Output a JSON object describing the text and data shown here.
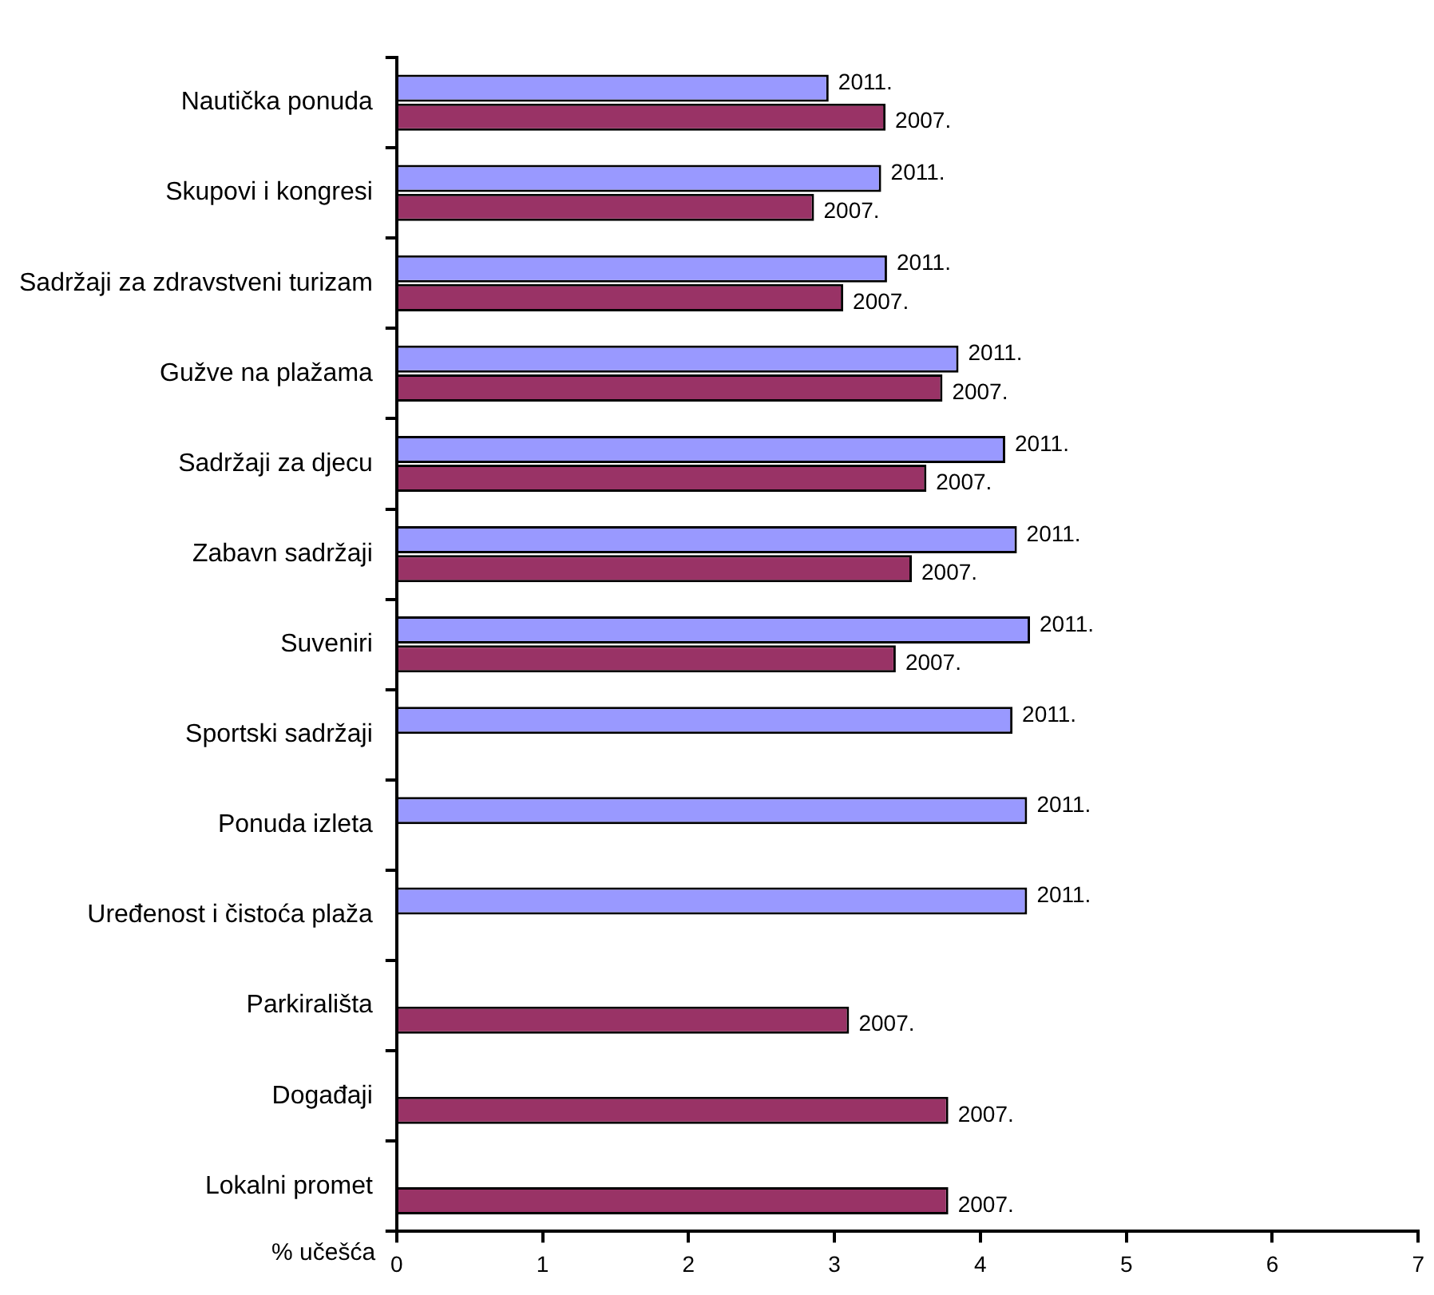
{
  "chart_data": {
    "type": "bar",
    "orientation": "horizontal",
    "xlabel": "% učešća",
    "categories": [
      "Nautička ponuda",
      "Skupovi i kongresi",
      "Sadržaji za zdravstveni turizam",
      "Gužve na plažama",
      "Sadržaji za djecu",
      "Zabavn sadržaji",
      "Suveniri",
      "Sportski sadržaji",
      "Ponuda izleta",
      "Uređenost i čistoća plaža",
      "Parkirališta",
      "Događaji",
      "Lokalni promet"
    ],
    "series": [
      {
        "name": "2011.",
        "color": "#9999ff",
        "values": [
          2.96,
          3.32,
          3.36,
          3.85,
          4.17,
          4.25,
          4.34,
          4.22,
          4.32,
          4.32,
          null,
          null,
          null
        ]
      },
      {
        "name": "2007.",
        "color": "#993366",
        "values": [
          3.35,
          2.86,
          3.06,
          3.74,
          3.63,
          3.53,
          3.42,
          null,
          null,
          null,
          3.1,
          3.78,
          3.78
        ]
      }
    ],
    "xlim": [
      0,
      7
    ],
    "xticks": [
      0,
      1,
      2,
      3,
      4,
      5,
      6,
      7
    ],
    "grid": false,
    "legend": false
  }
}
